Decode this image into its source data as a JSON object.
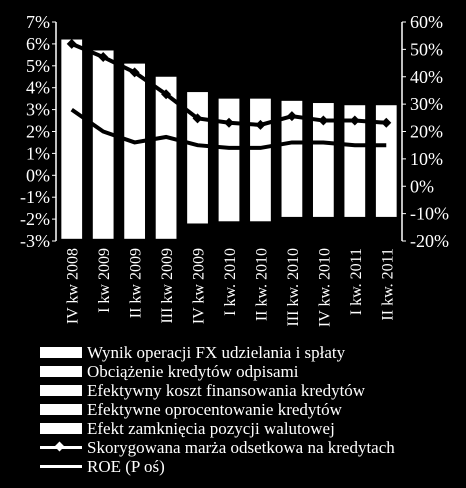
{
  "chart_data": {
    "type": "bar",
    "categories": [
      "IV kw 2008",
      "I kw 2009",
      "II kw 2009",
      "III kw 2009",
      "IV kw 2009",
      "I kw. 2010",
      "II kw. 2010",
      "III kw. 2010",
      "IV kw. 2010",
      "I kw. 2011",
      "II kw. 2011"
    ],
    "y_left": {
      "ylim": [
        -3,
        7
      ],
      "ticks": [
        "-3%",
        "-2%",
        "-1%",
        "0%",
        "1%",
        "2%",
        "3%",
        "4%",
        "5%",
        "6%",
        "7%"
      ]
    },
    "y_right": {
      "ylim": [
        -20,
        60
      ],
      "ticks": [
        "-20%",
        "-10%",
        "0%",
        "10%",
        "20%",
        "30%",
        "40%",
        "50%",
        "60%"
      ]
    },
    "bar_top_values": [
      6.2,
      5.7,
      5.1,
      4.5,
      3.8,
      3.5,
      3.5,
      3.4,
      3.3,
      3.2,
      3.2
    ],
    "bar_bottom_values": [
      -2.9,
      -2.9,
      -2.9,
      -2.9,
      -2.2,
      -2.1,
      -2.1,
      -1.9,
      -1.9,
      -1.9,
      -1.9
    ],
    "series": [
      {
        "name": "Wynik operacji FX udzielania i spłaty",
        "type": "bar",
        "axis": "left"
      },
      {
        "name": "Obciążenie kredytów odpisami",
        "type": "bar",
        "axis": "left"
      },
      {
        "name": "Efektywny koszt finansowania kredytów",
        "type": "bar",
        "axis": "left"
      },
      {
        "name": "Efektywne oprocentowanie kredytów",
        "type": "bar",
        "axis": "left"
      },
      {
        "name": "Efekt zamknięcia pozycji walutowej",
        "type": "bar",
        "axis": "left"
      },
      {
        "name": "Skorygowana marża odsetkowa na kredytach",
        "type": "line",
        "marker": "diamond",
        "axis": "left",
        "values": [
          6.0,
          5.4,
          4.7,
          3.7,
          2.6,
          2.4,
          2.3,
          2.7,
          2.5,
          2.5,
          2.4
        ]
      },
      {
        "name": "ROE (P oś)",
        "type": "line",
        "axis": "right",
        "values": [
          28,
          20,
          16,
          18,
          15,
          14,
          14,
          16,
          16,
          15,
          15
        ]
      }
    ]
  }
}
